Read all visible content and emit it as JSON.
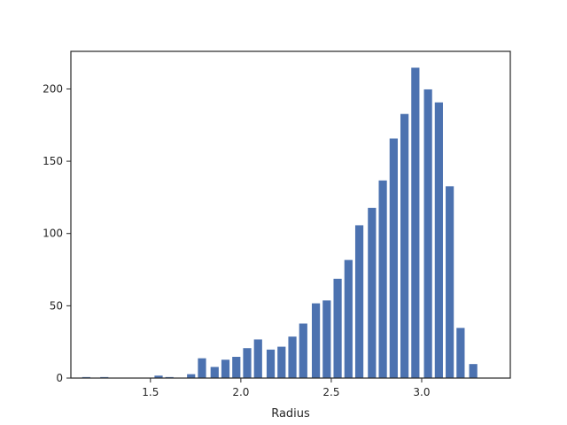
{
  "chart_data": {
    "type": "bar",
    "title": "",
    "xlabel": "Radius",
    "ylabel": "",
    "xlim": [
      1.06,
      3.49
    ],
    "ylim": [
      0,
      226
    ],
    "grid": false,
    "bar_color": "#4c72b0",
    "bin_width": 0.05,
    "x_ticks": [
      {
        "value": 1.5,
        "label": "1.5"
      },
      {
        "value": 2.0,
        "label": "2.0"
      },
      {
        "value": 2.5,
        "label": "2.5"
      },
      {
        "value": 3.0,
        "label": "3.0"
      }
    ],
    "y_ticks": [
      {
        "value": 0,
        "label": "0"
      },
      {
        "value": 50,
        "label": "50"
      },
      {
        "value": 100,
        "label": "100"
      },
      {
        "value": 150,
        "label": "150"
      },
      {
        "value": 200,
        "label": "200"
      }
    ],
    "bins": [
      {
        "x0": 1.12,
        "count": 1
      },
      {
        "x0": 1.17,
        "count": 0
      },
      {
        "x0": 1.22,
        "count": 1
      },
      {
        "x0": 1.27,
        "count": 0
      },
      {
        "x0": 1.32,
        "count": 0
      },
      {
        "x0": 1.37,
        "count": 0
      },
      {
        "x0": 1.42,
        "count": 0
      },
      {
        "x0": 1.52,
        "count": 2
      },
      {
        "x0": 1.58,
        "count": 1
      },
      {
        "x0": 1.64,
        "count": 0
      },
      {
        "x0": 1.7,
        "count": 3
      },
      {
        "x0": 1.76,
        "count": 14
      },
      {
        "x0": 1.83,
        "count": 8
      },
      {
        "x0": 1.89,
        "count": 13
      },
      {
        "x0": 1.95,
        "count": 15
      },
      {
        "x0": 2.01,
        "count": 21
      },
      {
        "x0": 2.07,
        "count": 27
      },
      {
        "x0": 2.14,
        "count": 20
      },
      {
        "x0": 2.2,
        "count": 22
      },
      {
        "x0": 2.26,
        "count": 29
      },
      {
        "x0": 2.32,
        "count": 38
      },
      {
        "x0": 2.39,
        "count": 52
      },
      {
        "x0": 2.45,
        "count": 54
      },
      {
        "x0": 2.51,
        "count": 69
      },
      {
        "x0": 2.57,
        "count": 82
      },
      {
        "x0": 2.63,
        "count": 106
      },
      {
        "x0": 2.7,
        "count": 118
      },
      {
        "x0": 2.76,
        "count": 137
      },
      {
        "x0": 2.82,
        "count": 166
      },
      {
        "x0": 2.88,
        "count": 183
      },
      {
        "x0": 2.94,
        "count": 215
      },
      {
        "x0": 3.01,
        "count": 200
      },
      {
        "x0": 3.07,
        "count": 191
      },
      {
        "x0": 3.13,
        "count": 133
      },
      {
        "x0": 3.19,
        "count": 35
      },
      {
        "x0": 3.26,
        "count": 10
      }
    ]
  }
}
